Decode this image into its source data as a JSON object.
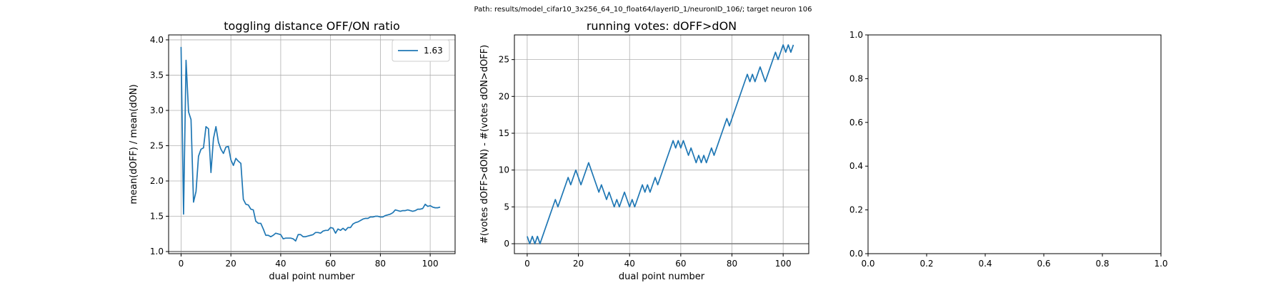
{
  "figure": {
    "suptitle": "Path: results/model_cifar10_3x256_64_10_float64/layerID_1/neuronID_106/; target neuron 106"
  },
  "colors": {
    "series": "#1f77b4",
    "grid": "#b0b0b0",
    "baseline": "#808080",
    "axes": "#000000",
    "background": "#ffffff"
  },
  "chart_data": [
    {
      "type": "line",
      "title": "toggling distance OFF/ON ratio",
      "xlabel": "dual point number",
      "ylabel": "mean(dOFF) / mean(dON)",
      "xlim": [
        -5,
        110
      ],
      "ylim": [
        0.97,
        4.07
      ],
      "xticks": [
        0,
        20,
        40,
        60,
        80,
        100
      ],
      "yticks": [
        1.0,
        1.5,
        2.0,
        2.5,
        3.0,
        3.5,
        4.0
      ],
      "ytick_labels": [
        "1.0",
        "1.5",
        "2.0",
        "2.5",
        "3.0",
        "3.5",
        "4.0"
      ],
      "grid": true,
      "legend": "top-right",
      "baseline": 1.0,
      "series": [
        {
          "name": "1.63",
          "x": [
            0,
            1,
            2,
            3,
            4,
            5,
            6,
            7,
            8,
            9,
            10,
            11,
            12,
            13,
            14,
            15,
            16,
            17,
            18,
            19,
            20,
            21,
            22,
            23,
            24,
            25,
            26,
            27,
            28,
            29,
            30,
            31,
            32,
            33,
            34,
            35,
            36,
            37,
            38,
            39,
            40,
            41,
            42,
            43,
            44,
            45,
            46,
            47,
            48,
            49,
            50,
            51,
            52,
            53,
            54,
            55,
            56,
            57,
            58,
            59,
            60,
            61,
            62,
            63,
            64,
            65,
            66,
            67,
            68,
            69,
            70,
            71,
            72,
            73,
            74,
            75,
            76,
            77,
            78,
            79,
            80,
            81,
            82,
            83,
            84,
            85,
            86,
            87,
            88,
            89,
            90,
            91,
            92,
            93,
            94,
            95,
            96,
            97,
            98,
            99,
            100,
            101,
            102,
            103,
            104
          ],
          "y": [
            3.9,
            1.53,
            3.71,
            2.98,
            2.87,
            1.7,
            1.85,
            2.35,
            2.45,
            2.47,
            2.77,
            2.74,
            2.12,
            2.6,
            2.77,
            2.55,
            2.45,
            2.39,
            2.48,
            2.49,
            2.3,
            2.22,
            2.32,
            2.28,
            2.25,
            1.74,
            1.67,
            1.66,
            1.6,
            1.59,
            1.43,
            1.4,
            1.4,
            1.32,
            1.23,
            1.23,
            1.21,
            1.23,
            1.26,
            1.25,
            1.24,
            1.18,
            1.19,
            1.19,
            1.19,
            1.18,
            1.15,
            1.24,
            1.24,
            1.21,
            1.21,
            1.22,
            1.23,
            1.24,
            1.27,
            1.27,
            1.26,
            1.29,
            1.3,
            1.3,
            1.34,
            1.33,
            1.26,
            1.32,
            1.3,
            1.33,
            1.3,
            1.34,
            1.34,
            1.39,
            1.41,
            1.42,
            1.44,
            1.46,
            1.47,
            1.47,
            1.49,
            1.49,
            1.5,
            1.5,
            1.49,
            1.49,
            1.51,
            1.52,
            1.53,
            1.55,
            1.59,
            1.58,
            1.57,
            1.58,
            1.58,
            1.59,
            1.58,
            1.57,
            1.58,
            1.6,
            1.6,
            1.61,
            1.67,
            1.64,
            1.65,
            1.63,
            1.62,
            1.62,
            1.63
          ]
        }
      ]
    },
    {
      "type": "line",
      "title": "running votes: dOFF>dON",
      "xlabel": "dual point number",
      "ylabel": "#(votes dOFF>dON) - #(votes dON>dOFF)",
      "xlim": [
        -5,
        110
      ],
      "ylim": [
        -1.35,
        28.35
      ],
      "xticks": [
        0,
        20,
        40,
        60,
        80,
        100
      ],
      "yticks": [
        0,
        5,
        10,
        15,
        20,
        25
      ],
      "ytick_labels": [
        "0",
        "5",
        "10",
        "15",
        "20",
        "25"
      ],
      "grid": true,
      "baseline": 0,
      "series": [
        {
          "x": [
            0,
            1,
            2,
            3,
            4,
            5,
            6,
            7,
            8,
            9,
            10,
            11,
            12,
            13,
            14,
            15,
            16,
            17,
            18,
            19,
            20,
            21,
            22,
            23,
            24,
            25,
            26,
            27,
            28,
            29,
            30,
            31,
            32,
            33,
            34,
            35,
            36,
            37,
            38,
            39,
            40,
            41,
            42,
            43,
            44,
            45,
            46,
            47,
            48,
            49,
            50,
            51,
            52,
            53,
            54,
            55,
            56,
            57,
            58,
            59,
            60,
            61,
            62,
            63,
            64,
            65,
            66,
            67,
            68,
            69,
            70,
            71,
            72,
            73,
            74,
            75,
            76,
            77,
            78,
            79,
            80,
            81,
            82,
            83,
            84,
            85,
            86,
            87,
            88,
            89,
            90,
            91,
            92,
            93,
            94,
            95,
            96,
            97,
            98,
            99,
            100,
            101,
            102,
            103,
            104
          ],
          "y": [
            1,
            0,
            1,
            0,
            1,
            0,
            1,
            2,
            3,
            4,
            5,
            6,
            5,
            6,
            7,
            8,
            9,
            8,
            9,
            10,
            9,
            8,
            9,
            10,
            11,
            10,
            9,
            8,
            7,
            8,
            7,
            6,
            7,
            6,
            5,
            6,
            5,
            6,
            7,
            6,
            5,
            6,
            5,
            6,
            7,
            8,
            7,
            8,
            7,
            8,
            9,
            8,
            9,
            10,
            11,
            12,
            13,
            14,
            13,
            14,
            13,
            14,
            13,
            12,
            13,
            12,
            11,
            12,
            11,
            12,
            11,
            12,
            13,
            12,
            13,
            14,
            15,
            16,
            17,
            16,
            17,
            18,
            19,
            20,
            21,
            22,
            23,
            22,
            23,
            22,
            23,
            24,
            23,
            22,
            23,
            24,
            25,
            26,
            25,
            26,
            27,
            26,
            27,
            26,
            27
          ]
        }
      ]
    },
    {
      "type": "line",
      "title": "",
      "xlabel": "",
      "ylabel": "",
      "xlim": [
        0,
        1
      ],
      "ylim": [
        0,
        1
      ],
      "xticks": [
        0,
        0.2,
        0.4,
        0.6,
        0.8,
        1.0
      ],
      "xtick_labels": [
        "0.0",
        "0.2",
        "0.4",
        "0.6",
        "0.8",
        "1.0"
      ],
      "yticks": [
        0,
        0.2,
        0.4,
        0.6,
        0.8,
        1.0
      ],
      "ytick_labels": [
        "0.0",
        "0.2",
        "0.4",
        "0.6",
        "0.8",
        "1.0"
      ],
      "grid": false,
      "series": []
    }
  ]
}
